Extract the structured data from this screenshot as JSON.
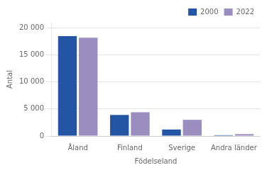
{
  "chart_data": {
    "type": "bar",
    "categories": [
      "Åland",
      "Finland",
      "Sverige",
      "Andra länder"
    ],
    "series": [
      {
        "name": "2000",
        "color": "#2255a4",
        "values": [
          18500,
          3900,
          1200,
          150
        ]
      },
      {
        "name": "2022",
        "color": "#9b8dc0",
        "values": [
          18200,
          4400,
          3000,
          350
        ]
      }
    ],
    "xlabel": "Födelseland",
    "ylabel": "Antal",
    "ylim": [
      0,
      21000
    ],
    "yticks": [
      0,
      {
        "value": 5000,
        "label": "5 000"
      },
      {
        "value": 10000,
        "label": "10 000"
      },
      {
        "value": 15000,
        "label": "15 000"
      },
      {
        "value": 20000,
        "label": "20 000"
      }
    ],
    "grid": true,
    "legend": "upper right"
  }
}
